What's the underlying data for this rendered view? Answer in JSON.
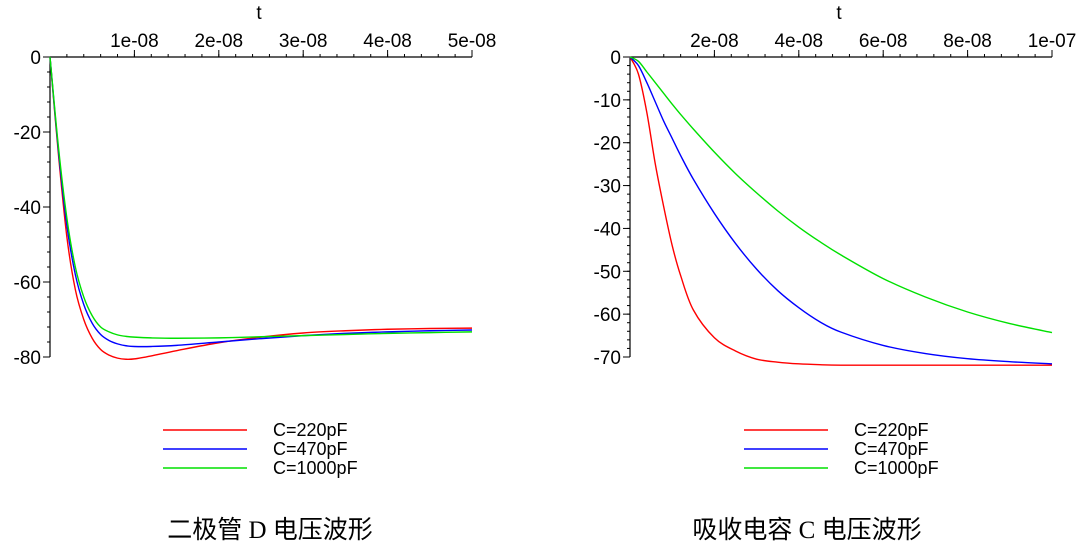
{
  "chart_data": [
    {
      "type": "line",
      "title": "",
      "xlabel": "t",
      "ylabel": "",
      "x_axis_position": "top",
      "xlim": [
        0,
        5e-08
      ],
      "ylim": [
        -80,
        0
      ],
      "xtick_values": [
        1e-08,
        2e-08,
        3e-08,
        4e-08,
        5e-08
      ],
      "xtick_labels": [
        "1e-08",
        "2e-08",
        "3e-08",
        "4e-08",
        "5e-08"
      ],
      "ytick_values": [
        0,
        -20,
        -40,
        -60,
        -80
      ],
      "ytick_labels": [
        "0",
        "-20",
        "-40",
        "-60",
        "-80"
      ],
      "grid": false,
      "legend_position": "bottom",
      "caption": "二极管 D 电压波形",
      "series": [
        {
          "name": "C=220pF",
          "color": "#ff0000",
          "x": [
            0,
            1e-09,
            2e-09,
            3e-09,
            4e-09,
            5e-09,
            6e-09,
            7e-09,
            8e-09,
            9e-09,
            1e-08,
            1.2e-08,
            1.5e-08,
            2e-08,
            2.5e-08,
            3e-08,
            3.5e-08,
            4e-08,
            4.5e-08,
            5e-08
          ],
          "y": [
            0,
            -26,
            -48,
            -62,
            -70,
            -75,
            -78,
            -79.5,
            -80.3,
            -80.6,
            -80.5,
            -79.7,
            -78.3,
            -76.2,
            -74.7,
            -73.6,
            -73,
            -72.6,
            -72.4,
            -72.3
          ]
        },
        {
          "name": "C=470pF",
          "color": "#0000ff",
          "x": [
            0,
            1e-09,
            2e-09,
            3e-09,
            4e-09,
            5e-09,
            6e-09,
            7e-09,
            8e-09,
            9e-09,
            1e-08,
            1.2e-08,
            1.5e-08,
            2e-08,
            2.5e-08,
            3e-08,
            3.5e-08,
            4e-08,
            4.5e-08,
            5e-08
          ],
          "y": [
            0,
            -25,
            -45,
            -58,
            -66,
            -71,
            -74,
            -75.6,
            -76.5,
            -77,
            -77.2,
            -77.2,
            -76.9,
            -76,
            -75.1,
            -74.3,
            -73.7,
            -73.3,
            -73,
            -72.8
          ]
        },
        {
          "name": "C=1000pF",
          "color": "#00e000",
          "x": [
            0,
            1e-09,
            2e-09,
            3e-09,
            4e-09,
            5e-09,
            6e-09,
            7e-09,
            8e-09,
            9e-09,
            1e-08,
            1.2e-08,
            1.5e-08,
            2e-08,
            2.5e-08,
            3e-08,
            3.5e-08,
            4e-08,
            4.5e-08,
            5e-08
          ],
          "y": [
            0,
            -24,
            -43,
            -56,
            -64,
            -69,
            -72,
            -73.3,
            -74.1,
            -74.5,
            -74.7,
            -74.9,
            -75,
            -74.9,
            -74.6,
            -74.3,
            -74,
            -73.7,
            -73.5,
            -73.3
          ]
        }
      ]
    },
    {
      "type": "line",
      "title": "",
      "xlabel": "t",
      "ylabel": "",
      "x_axis_position": "top",
      "xlim": [
        0,
        1e-07
      ],
      "ylim": [
        -70,
        0
      ],
      "xtick_values": [
        2e-08,
        4e-08,
        6e-08,
        8e-08,
        1e-07
      ],
      "xtick_labels": [
        "2e-08",
        "4e-08",
        "6e-08",
        "8e-08",
        "1e-07"
      ],
      "ytick_values": [
        0,
        -10,
        -20,
        -30,
        -40,
        -50,
        -60,
        -70
      ],
      "ytick_labels": [
        "0",
        "-10",
        "-20",
        "-30",
        "-40",
        "-50",
        "-60",
        "-70"
      ],
      "grid": false,
      "legend_position": "bottom",
      "caption": "吸收电容 C 电压波形",
      "series": [
        {
          "name": "C=220pF",
          "color": "#ff0000",
          "x": [
            0,
            2e-09,
            4e-09,
            6e-09,
            8e-09,
            1e-08,
            1.2e-08,
            1.5e-08,
            2e-08,
            2.5e-08,
            3e-08,
            3.5e-08,
            4e-08,
            4.5e-08,
            5e-08,
            6e-08,
            7e-08,
            8e-08,
            9e-08,
            1e-07
          ],
          "y": [
            0,
            -4,
            -13,
            -25,
            -35,
            -44,
            -51,
            -59,
            -65.5,
            -68.6,
            -70.5,
            -71.2,
            -71.6,
            -71.8,
            -71.9,
            -71.9,
            -71.9,
            -71.9,
            -71.9,
            -71.9
          ]
        },
        {
          "name": "C=470pF",
          "color": "#0000ff",
          "x": [
            0,
            2e-09,
            4e-09,
            6e-09,
            8e-09,
            1e-08,
            1.2e-08,
            1.5e-08,
            2e-08,
            2.5e-08,
            3e-08,
            3.5e-08,
            4e-08,
            4.5e-08,
            5e-08,
            6e-08,
            7e-08,
            8e-08,
            9e-08,
            1e-07
          ],
          "y": [
            0,
            -2,
            -6,
            -10.5,
            -15,
            -19,
            -23,
            -28.5,
            -36.5,
            -43.5,
            -49.5,
            -54.5,
            -58.5,
            -61.8,
            -64.2,
            -67.3,
            -69.2,
            -70.4,
            -71.1,
            -71.6
          ]
        },
        {
          "name": "C=1000pF",
          "color": "#00e000",
          "x": [
            0,
            2e-09,
            4e-09,
            6e-09,
            8e-09,
            1e-08,
            1.2e-08,
            1.5e-08,
            2e-08,
            2.5e-08,
            3e-08,
            3.5e-08,
            4e-08,
            4.5e-08,
            5e-08,
            6e-08,
            7e-08,
            8e-08,
            9e-08,
            1e-07
          ],
          "y": [
            0,
            -1,
            -3.5,
            -6,
            -8.5,
            -11,
            -13.4,
            -16.8,
            -22.2,
            -27.2,
            -31.7,
            -35.9,
            -39.7,
            -43.1,
            -46.2,
            -51.7,
            -56,
            -59.5,
            -62.2,
            -64.3
          ]
        }
      ]
    }
  ]
}
